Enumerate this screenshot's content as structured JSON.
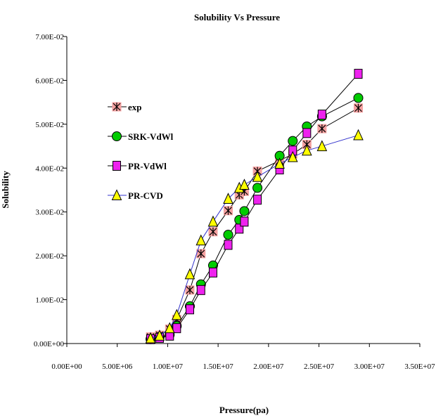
{
  "chart_data": {
    "type": "line",
    "title": "Solubility Vs Pressure",
    "xlabel": "Pressure(pa)",
    "ylabel": "Solubility",
    "xlim": [
      0,
      35000000
    ],
    "ylim": [
      0,
      0.07
    ],
    "xticks": [
      0,
      5000000,
      10000000,
      15000000,
      20000000,
      25000000,
      30000000,
      35000000
    ],
    "xtick_labels": [
      "0.00E+00",
      "5.00E+06",
      "1.00E+07",
      "1.50E+07",
      "2.00E+07",
      "2.50E+07",
      "3.00E+07",
      "3.50E+07"
    ],
    "yticks": [
      0,
      0.01,
      0.02,
      0.03,
      0.04,
      0.05,
      0.06,
      0.07
    ],
    "ytick_labels": [
      "0.00E+00",
      "1.00E-02",
      "2.00E-02",
      "3.00E-02",
      "4.00E-02",
      "5.00E-02",
      "6.00E-02",
      "7.00E-02"
    ],
    "grid": false,
    "legend_position": "left",
    "series": [
      {
        "name": "exp",
        "marker": "asterisk-square",
        "color": "#000000",
        "marker_fill": "#f4a0a0",
        "x": [
          8300000,
          9200000,
          10200000,
          10900000,
          12200000,
          13300000,
          14500000,
          16000000,
          17100000,
          17600000,
          18900000,
          21100000,
          22400000,
          23800000,
          25300000,
          28900000
        ],
        "y": [
          0.0015,
          0.0019,
          0.0033,
          0.0055,
          0.0122,
          0.0205,
          0.0255,
          0.0303,
          0.0339,
          0.0347,
          0.0393,
          0.0417,
          0.0432,
          0.0454,
          0.049,
          0.0537
        ]
      },
      {
        "name": "SRK-VdWl",
        "marker": "circle",
        "color": "#000000",
        "marker_fill": "#00cc00",
        "x": [
          8300000,
          9200000,
          10200000,
          10900000,
          12200000,
          13300000,
          14500000,
          16000000,
          17100000,
          17600000,
          18900000,
          21100000,
          22400000,
          23800000,
          25300000,
          28900000
        ],
        "y": [
          0.001,
          0.0015,
          0.002,
          0.004,
          0.0085,
          0.0135,
          0.0178,
          0.0248,
          0.0282,
          0.0302,
          0.0355,
          0.0428,
          0.0462,
          0.0495,
          0.0518,
          0.056
        ]
      },
      {
        "name": "PR-VdWl",
        "marker": "square",
        "color": "#000000",
        "marker_fill": "#ee22ee",
        "x": [
          8300000,
          9200000,
          10200000,
          10900000,
          12200000,
          13300000,
          14500000,
          16000000,
          17100000,
          17600000,
          18900000,
          21100000,
          22400000,
          23800000,
          25300000,
          28900000
        ],
        "y": [
          0.001,
          0.0013,
          0.0018,
          0.0035,
          0.0078,
          0.0122,
          0.0162,
          0.0225,
          0.0262,
          0.0278,
          0.0328,
          0.0397,
          0.044,
          0.048,
          0.0522,
          0.0615
        ]
      },
      {
        "name": "PR-CVD",
        "marker": "triangle",
        "color": "#3333cc",
        "marker_fill": "#ffff00",
        "x": [
          8300000,
          9200000,
          10200000,
          10900000,
          12200000,
          13300000,
          14500000,
          16000000,
          17100000,
          17600000,
          18900000,
          21100000,
          22400000,
          23800000,
          25300000,
          28900000
        ],
        "y": [
          0.0012,
          0.0018,
          0.0035,
          0.0065,
          0.0158,
          0.0235,
          0.0278,
          0.033,
          0.0355,
          0.0362,
          0.038,
          0.041,
          0.0425,
          0.044,
          0.045,
          0.0475
        ]
      }
    ]
  }
}
